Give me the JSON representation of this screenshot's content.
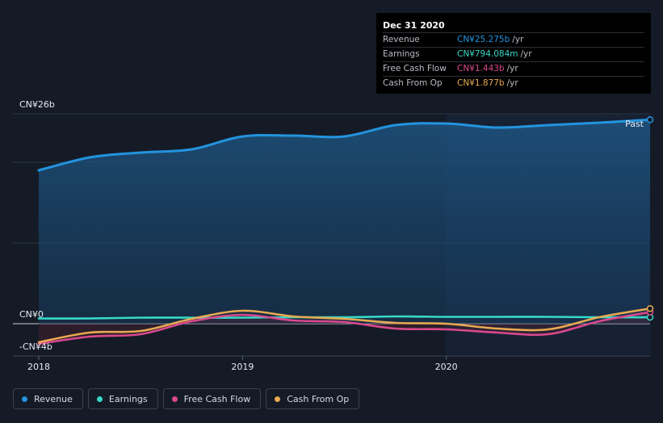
{
  "tooltip": {
    "date": "Dec 31 2020",
    "rows": [
      {
        "label": "Revenue",
        "value": "CN¥25.275b",
        "unit": "/yr",
        "color": "#2394df"
      },
      {
        "label": "Earnings",
        "value": "CN¥794.084m",
        "unit": "/yr",
        "color": "#38d9c9"
      },
      {
        "label": "Free Cash Flow",
        "value": "CN¥1.443b",
        "unit": "/yr",
        "color": "#d9488d"
      },
      {
        "label": "Cash From Op",
        "value": "CN¥1.877b",
        "unit": "/yr",
        "color": "#e8a951"
      }
    ]
  },
  "legend": [
    {
      "label": "Revenue",
      "color": "#2394df"
    },
    {
      "label": "Earnings",
      "color": "#38d9c9"
    },
    {
      "label": "Free Cash Flow",
      "color": "#d9488d"
    },
    {
      "label": "Cash From Op",
      "color": "#e8a951"
    }
  ],
  "past_label": "Past",
  "chart_data": {
    "type": "line",
    "title": "",
    "xlabel": "",
    "ylabel": "",
    "x_ticks": [
      "2018",
      "2019",
      "2020"
    ],
    "y_tick_labels": [
      "CN¥26b",
      "CN¥0",
      "-CN¥4b"
    ],
    "ylim": [
      -4,
      26
    ],
    "xlim": [
      2018.0,
      2021.0
    ],
    "x": [
      2018.0,
      2018.25,
      2018.5,
      2018.75,
      2019.0,
      2019.25,
      2019.5,
      2019.75,
      2020.0,
      2020.25,
      2020.5,
      2020.75,
      2021.0
    ],
    "series": [
      {
        "name": "Revenue",
        "color": "#2394df",
        "values": [
          19.0,
          20.6,
          21.2,
          21.6,
          23.2,
          23.3,
          23.2,
          24.6,
          24.8,
          24.3,
          24.6,
          24.9,
          25.275
        ]
      },
      {
        "name": "Earnings",
        "color": "#38d9c9",
        "values": [
          0.65,
          0.65,
          0.75,
          0.75,
          0.75,
          0.8,
          0.8,
          0.9,
          0.85,
          0.85,
          0.85,
          0.8,
          0.794
        ]
      },
      {
        "name": "Free Cash Flow",
        "color": "#d9488d",
        "values": [
          -2.5,
          -1.6,
          -1.3,
          0.3,
          1.1,
          0.4,
          0.2,
          -0.6,
          -0.7,
          -1.1,
          -1.3,
          0.3,
          1.443
        ]
      },
      {
        "name": "Cash From Op",
        "color": "#e8a951",
        "values": [
          -2.3,
          -1.1,
          -0.9,
          0.6,
          1.6,
          0.9,
          0.6,
          0.1,
          0.0,
          -0.6,
          -0.7,
          0.8,
          1.877
        ]
      }
    ],
    "grid": true,
    "legend_position": "bottom-left"
  }
}
